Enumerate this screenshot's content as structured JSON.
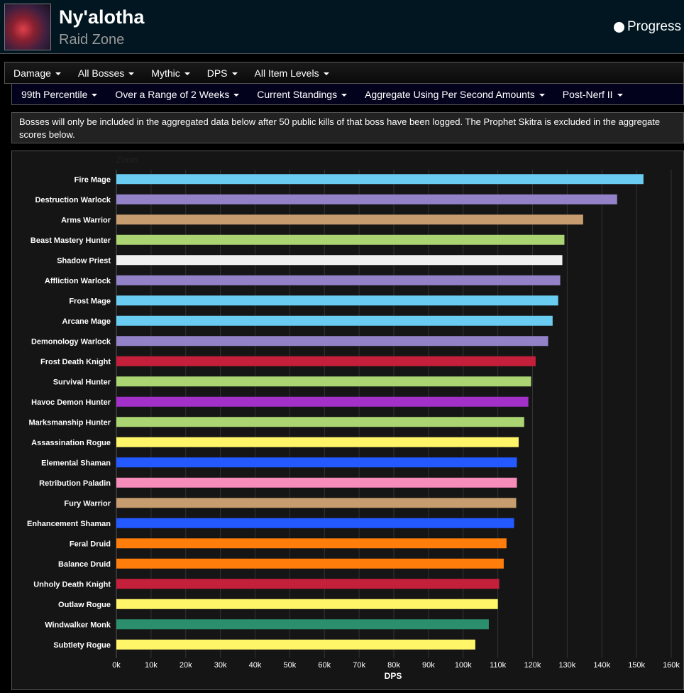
{
  "header": {
    "title": "Ny'alotha",
    "subtitle": "Raid Zone",
    "progress_label": "Progress"
  },
  "filters1": [
    "Damage",
    "All Bosses",
    "Mythic",
    "DPS",
    "All Item Levels"
  ],
  "filters2": [
    "99th Percentile",
    "Over a Range of 2 Weeks",
    "Current Standings",
    "Aggregate Using Per Second Amounts",
    "Post-Nerf II"
  ],
  "notice": "Bosses will only be included in the aggregated data below after 50 public kills of that boss have been logged. The Prophet Skitra is excluded in the aggregate scores below.",
  "chart_data": {
    "type": "bar",
    "orientation": "horizontal",
    "zoom_label": "Zoom",
    "xlabel": "DPS",
    "xlim": [
      0,
      160000
    ],
    "ticks": [
      "0k",
      "10k",
      "20k",
      "30k",
      "40k",
      "50k",
      "60k",
      "70k",
      "80k",
      "90k",
      "100k",
      "110k",
      "120k",
      "130k",
      "140k",
      "150k",
      "160k"
    ],
    "categories": [
      "Fire Mage",
      "Destruction Warlock",
      "Arms Warrior",
      "Beast Mastery Hunter",
      "Shadow Priest",
      "Affliction Warlock",
      "Frost Mage",
      "Arcane Mage",
      "Demonology Warlock",
      "Frost Death Knight",
      "Survival Hunter",
      "Havoc Demon Hunter",
      "Marksmanship Hunter",
      "Assassination Rogue",
      "Elemental Shaman",
      "Retribution Paladin",
      "Fury Warrior",
      "Enhancement Shaman",
      "Feral Druid",
      "Balance Druid",
      "Unholy Death Knight",
      "Outlaw Rogue",
      "Windwalker Monk",
      "Subtlety Rogue"
    ],
    "values": [
      152000,
      144400,
      134600,
      129200,
      128600,
      128000,
      127400,
      125800,
      124500,
      120900,
      119600,
      118800,
      117600,
      116000,
      115500,
      115500,
      115300,
      114700,
      112500,
      111700,
      110400,
      110000,
      107400,
      103500
    ],
    "colors": [
      "#69ccf0",
      "#9482c9",
      "#c79c6e",
      "#abd473",
      "#f0f0f0",
      "#9482c9",
      "#69ccf0",
      "#69ccf0",
      "#9482c9",
      "#c41f3b",
      "#abd473",
      "#a330c9",
      "#abd473",
      "#fff569",
      "#2359ff",
      "#f58cba",
      "#c79c6e",
      "#2359ff",
      "#ff7d0a",
      "#ff7d0a",
      "#c41f3b",
      "#fff569",
      "#2b8f6e",
      "#fff569"
    ]
  }
}
